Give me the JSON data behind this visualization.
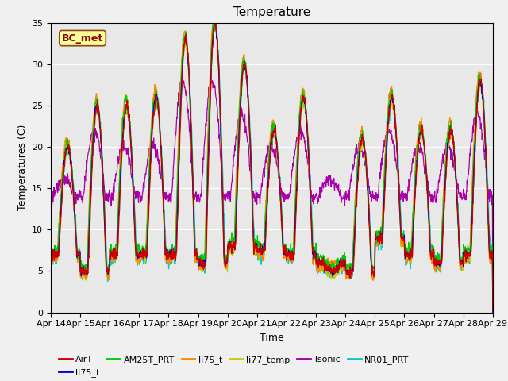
{
  "title": "Temperature",
  "xlabel": "Time",
  "ylabel": "Temperatures (C)",
  "annotation": "BC_met",
  "ylim": [
    0,
    35
  ],
  "xtick_labels": [
    "Apr 14",
    "Apr 15",
    "Apr 16",
    "Apr 17",
    "Apr 18",
    "Apr 19",
    "Apr 20",
    "Apr 21",
    "Apr 22",
    "Apr 23",
    "Apr 24",
    "Apr 25",
    "Apr 26",
    "Apr 27",
    "Apr 28",
    "Apr 29"
  ],
  "series_colors": {
    "AirT": "#cc0000",
    "li75_t": "#0000cc",
    "AM25T_PRT": "#00cc00",
    "li75_t2": "#ff8800",
    "li77_temp": "#cccc00",
    "Tsonic": "#aa00aa",
    "NR01_PRT": "#00cccc"
  },
  "legend_labels": [
    "AirT",
    "li75_t",
    "AM25T_PRT",
    "li75_t",
    "li77_temp",
    "Tsonic",
    "NR01_PRT"
  ],
  "legend_colors": [
    "#cc0000",
    "#0000cc",
    "#00cc00",
    "#ff8800",
    "#cccc00",
    "#aa00aa",
    "#00cccc"
  ],
  "bg_color": "#e8e8e8",
  "grid_color": "#ffffff",
  "title_fontsize": 11,
  "label_fontsize": 9,
  "tick_fontsize": 8,
  "legend_fontsize": 8,
  "peak_vals": [
    20,
    25,
    25,
    26,
    33,
    35,
    30,
    22,
    26,
    5,
    21,
    26,
    22,
    22,
    28
  ],
  "night_mins": [
    7,
    5,
    7,
    7,
    7,
    6,
    8,
    7.5,
    7,
    6,
    5,
    9,
    7,
    6,
    7
  ],
  "tsonic_peaks": [
    16,
    22,
    20,
    20,
    28,
    28,
    24,
    20,
    22,
    16,
    20,
    22,
    20,
    20,
    24
  ],
  "tsonic_min": 14
}
